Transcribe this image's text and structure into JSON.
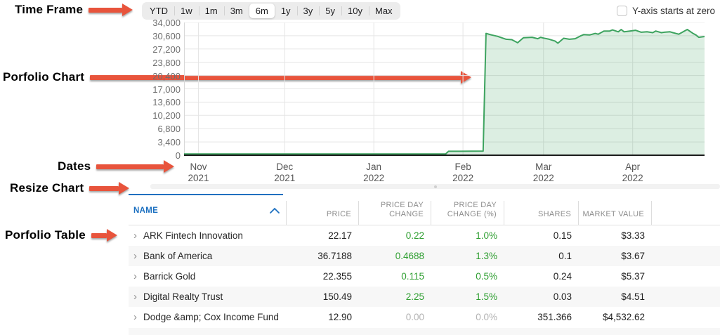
{
  "annotations": {
    "arrow_color": "#e8543c",
    "items": [
      {
        "label": "Time Frame"
      },
      {
        "label": "Porfolio Chart"
      },
      {
        "label": "Dates"
      },
      {
        "label": "Resize Chart"
      },
      {
        "label": "Porfolio Table"
      }
    ]
  },
  "timeframe": {
    "options": [
      "YTD",
      "1w",
      "1m",
      "3m",
      "6m",
      "1y",
      "3y",
      "5y",
      "10y",
      "Max"
    ],
    "selected": "6m"
  },
  "y_axis_checkbox": {
    "label": "Y-axis starts at zero",
    "checked": false
  },
  "chart_data": {
    "type": "area",
    "line_color": "#3da35f",
    "fill_opacity": 0.18,
    "ylim": [
      0,
      34000
    ],
    "grid": true,
    "y_ticks": [
      {
        "value": 0,
        "label": "0"
      },
      {
        "value": 3400,
        "label": "3,400"
      },
      {
        "value": 6800,
        "label": "6,800"
      },
      {
        "value": 10200,
        "label": "10,200"
      },
      {
        "value": 13600,
        "label": "13,600"
      },
      {
        "value": 17000,
        "label": "17,000"
      },
      {
        "value": 20400,
        "label": "20,400"
      },
      {
        "value": 23800,
        "label": "23,800"
      },
      {
        "value": 27200,
        "label": "27,200"
      },
      {
        "value": 30600,
        "label": "30,600"
      },
      {
        "value": 34000,
        "label": "34,000"
      }
    ],
    "x_start_date": "2021-10-27",
    "x_domain_days": 181,
    "x_ticks": [
      {
        "month": "Nov",
        "year": "2021",
        "day": 5
      },
      {
        "month": "Dec",
        "year": "2021",
        "day": 35
      },
      {
        "month": "Jan",
        "year": "2022",
        "day": 66
      },
      {
        "month": "Feb",
        "year": "2022",
        "day": 97
      },
      {
        "month": "Mar",
        "year": "2022",
        "day": 125
      },
      {
        "month": "Apr",
        "year": "2022",
        "day": 156
      }
    ],
    "points": [
      [
        0,
        300
      ],
      [
        10,
        310
      ],
      [
        20,
        300
      ],
      [
        30,
        315
      ],
      [
        40,
        305
      ],
      [
        50,
        315
      ],
      [
        60,
        310
      ],
      [
        70,
        325
      ],
      [
        80,
        315
      ],
      [
        90,
        330
      ],
      [
        91,
        335
      ],
      [
        92,
        1000
      ],
      [
        96,
        1010
      ],
      [
        100,
        1030
      ],
      [
        104,
        1060
      ],
      [
        105,
        31200
      ],
      [
        107,
        30800
      ],
      [
        109,
        30450
      ],
      [
        112,
        29700
      ],
      [
        114,
        29600
      ],
      [
        116,
        28800
      ],
      [
        118,
        30100
      ],
      [
        121,
        30200
      ],
      [
        123,
        29850
      ],
      [
        124,
        30200
      ],
      [
        125,
        30000
      ],
      [
        127,
        29700
      ],
      [
        129,
        29250
      ],
      [
        130,
        28700
      ],
      [
        132,
        29950
      ],
      [
        134,
        29700
      ],
      [
        136,
        29850
      ],
      [
        138,
        30600
      ],
      [
        139,
        30900
      ],
      [
        141,
        30800
      ],
      [
        143,
        31200
      ],
      [
        144,
        31000
      ],
      [
        146,
        31800
      ],
      [
        148,
        31800
      ],
      [
        149,
        32100
      ],
      [
        151,
        31600
      ],
      [
        152,
        32200
      ],
      [
        153,
        31600
      ],
      [
        155,
        31800
      ],
      [
        157,
        32000
      ],
      [
        159,
        31500
      ],
      [
        161,
        31600
      ],
      [
        163,
        31400
      ],
      [
        164,
        31800
      ],
      [
        166,
        31400
      ],
      [
        167,
        31500
      ],
      [
        169,
        31600
      ],
      [
        170,
        31400
      ],
      [
        172,
        31000
      ],
      [
        174,
        31800
      ],
      [
        175,
        32200
      ],
      [
        177,
        31200
      ],
      [
        178,
        30800
      ],
      [
        179,
        30200
      ],
      [
        181,
        30400
      ]
    ]
  },
  "table": {
    "sort_column": "NAME",
    "sort_direction": "ascending",
    "columns": [
      {
        "key": "name",
        "label": "NAME"
      },
      {
        "key": "price",
        "label": "PRICE"
      },
      {
        "key": "change",
        "label": "PRICE DAY CHANGE"
      },
      {
        "key": "change_pct",
        "label": "PRICE DAY CHANGE (%)"
      },
      {
        "key": "shares",
        "label": "SHARES"
      },
      {
        "key": "market_value",
        "label": "MARKET VALUE"
      }
    ],
    "rows": [
      {
        "name": "ARK Fintech Innovation",
        "price": "22.17",
        "change": "0.22",
        "change_pct": "1.0%",
        "shares": "0.15",
        "market_value": "$3.33",
        "change_positive": true
      },
      {
        "name": "Bank of America",
        "price": "36.7188",
        "change": "0.4688",
        "change_pct": "1.3%",
        "shares": "0.1",
        "market_value": "$3.67",
        "change_positive": true
      },
      {
        "name": "Barrick Gold",
        "price": "22.355",
        "change": "0.115",
        "change_pct": "0.5%",
        "shares": "0.24",
        "market_value": "$5.37",
        "change_positive": true
      },
      {
        "name": "Digital Realty Trust",
        "price": "150.49",
        "change": "2.25",
        "change_pct": "1.5%",
        "shares": "0.03",
        "market_value": "$4.51",
        "change_positive": true
      },
      {
        "name": "Dodge &amp; Cox Income Fund",
        "price": "12.90",
        "change": "0.00",
        "change_pct": "0.0%",
        "shares": "351.366",
        "market_value": "$4,532.62",
        "change_positive": false
      }
    ]
  },
  "colors": {
    "positive_green": "#2e9e30",
    "muted_gray": "#b3b3b3",
    "header_blue": "#1a6fc0",
    "arrow_red": "#e8543c",
    "chart_green": "#3da35f"
  }
}
